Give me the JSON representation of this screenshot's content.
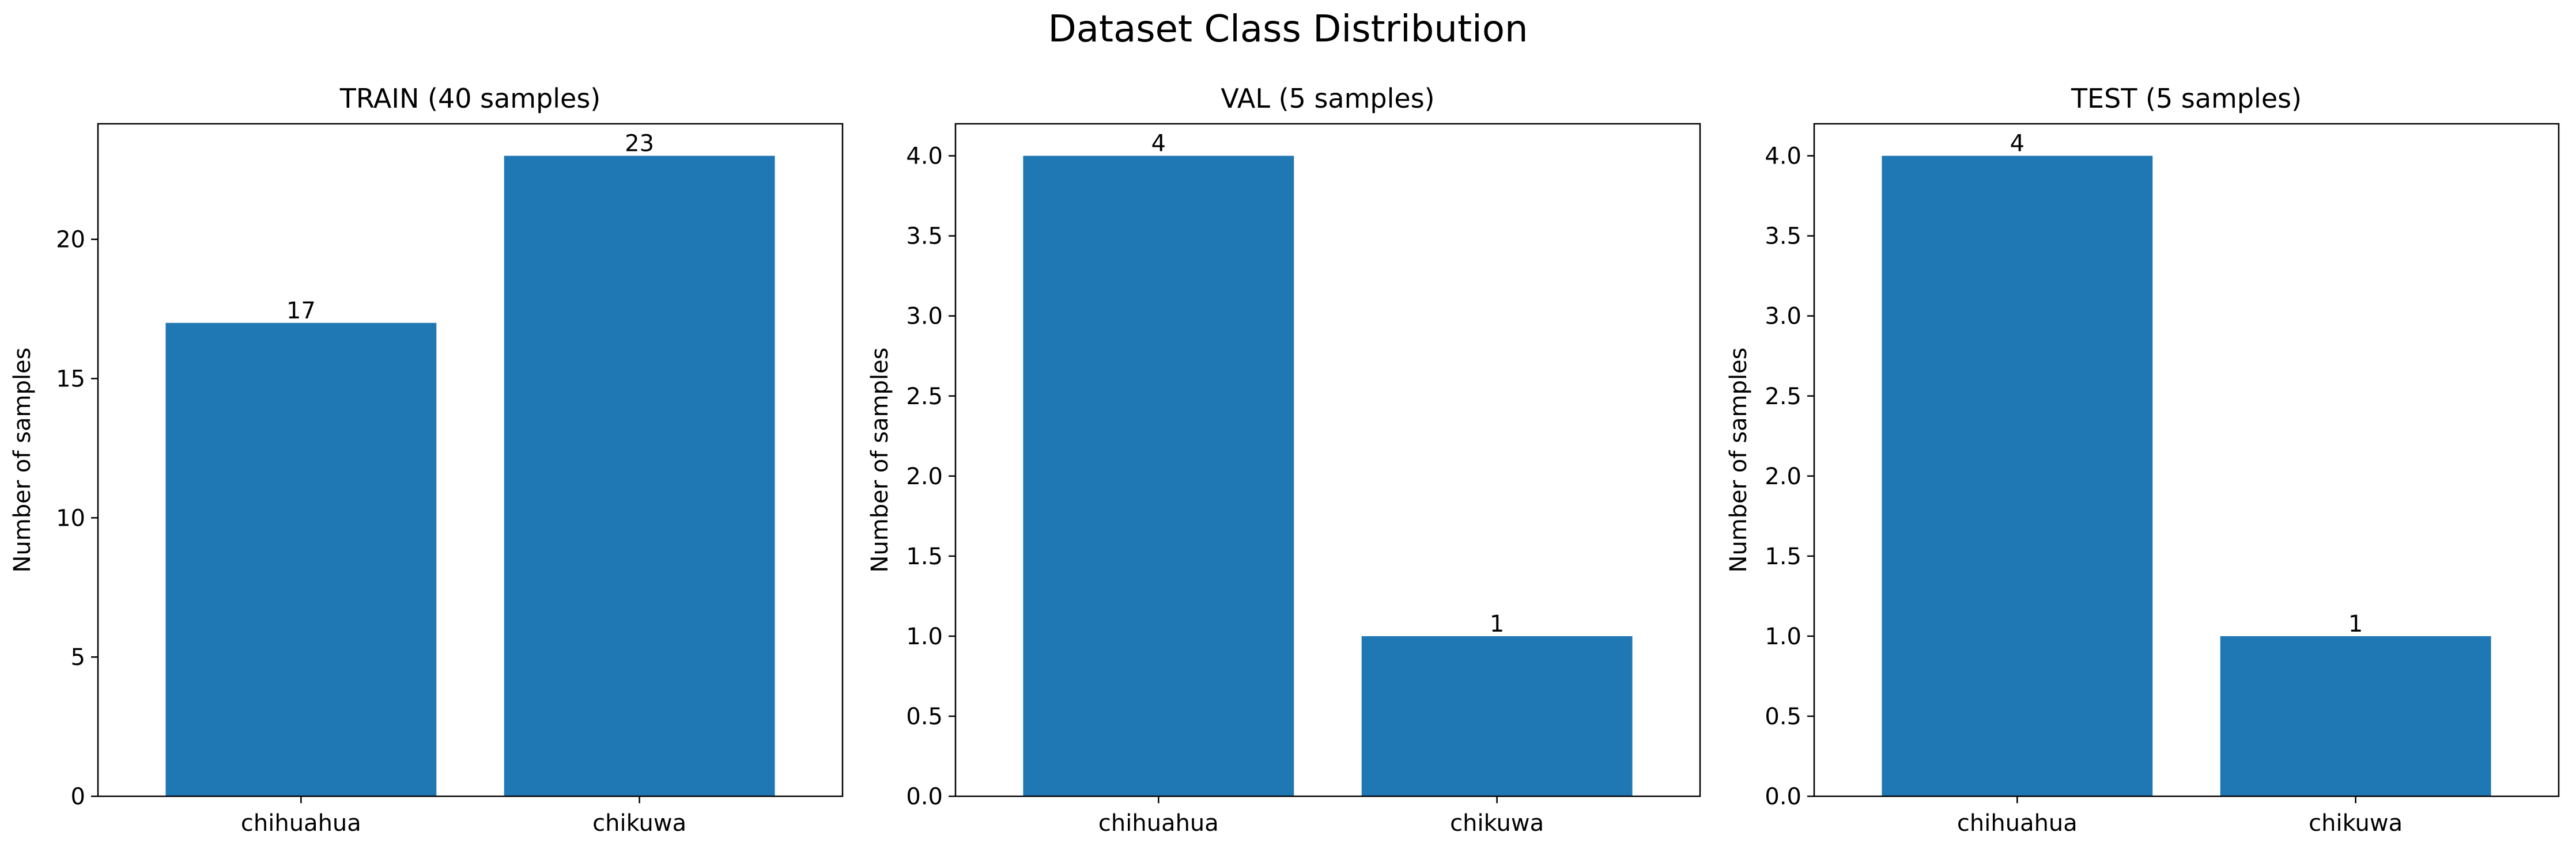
{
  "figure": {
    "title": "Dataset Class Distribution",
    "bar_color": "#1f77b4",
    "axes_color": "#000000",
    "background": "#ffffff"
  },
  "chart_data": [
    {
      "type": "bar",
      "title": "TRAIN (40 samples)",
      "xlabel": "",
      "ylabel": "Number of samples",
      "categories": [
        "chihuahua",
        "chikuwa"
      ],
      "values": [
        17,
        23
      ],
      "data_labels": [
        "17",
        "23"
      ],
      "ylim": [
        0,
        24.15
      ],
      "yticks": [
        0,
        5,
        10,
        15,
        20
      ],
      "ytick_labels": [
        "0",
        "5",
        "10",
        "15",
        "20"
      ],
      "grid": false
    },
    {
      "type": "bar",
      "title": "VAL (5 samples)",
      "xlabel": "",
      "ylabel": "Number of samples",
      "categories": [
        "chihuahua",
        "chikuwa"
      ],
      "values": [
        4,
        1
      ],
      "data_labels": [
        "4",
        "1"
      ],
      "ylim": [
        0,
        4.2
      ],
      "yticks": [
        0,
        0.5,
        1,
        1.5,
        2,
        2.5,
        3,
        3.5,
        4
      ],
      "ytick_labels": [
        "0.0",
        "0.5",
        "1.0",
        "1.5",
        "2.0",
        "2.5",
        "3.0",
        "3.5",
        "4.0"
      ],
      "grid": false
    },
    {
      "type": "bar",
      "title": "TEST (5 samples)",
      "xlabel": "",
      "ylabel": "Number of samples",
      "categories": [
        "chihuahua",
        "chikuwa"
      ],
      "values": [
        4,
        1
      ],
      "data_labels": [
        "4",
        "1"
      ],
      "ylim": [
        0,
        4.2
      ],
      "yticks": [
        0,
        0.5,
        1,
        1.5,
        2,
        2.5,
        3,
        3.5,
        4
      ],
      "ytick_labels": [
        "0.0",
        "0.5",
        "1.0",
        "1.5",
        "2.0",
        "2.5",
        "3.0",
        "3.5",
        "4.0"
      ],
      "grid": false
    }
  ]
}
